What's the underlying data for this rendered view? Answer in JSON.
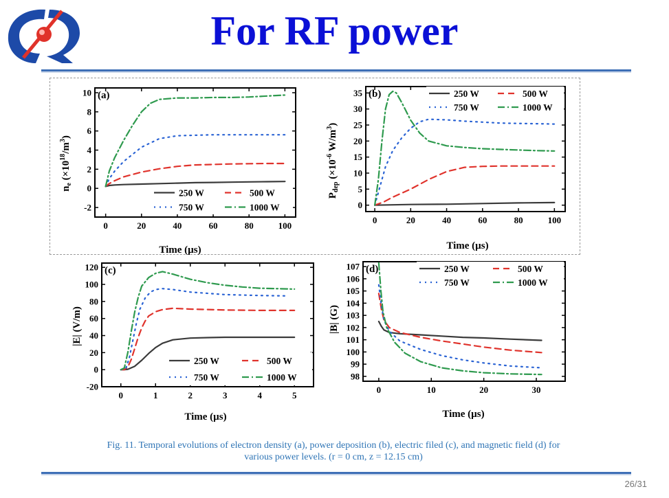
{
  "slide": {
    "title": "For RF power",
    "caption_line1": "Fig. 11. Temporal evolutions of electron density (a), power deposition (b), electric filed (c), and magnetic field (d) for",
    "caption_line2": "various power levels. (r = 0 cm, z = 12.15 cm)",
    "page_number": "26/31"
  },
  "colors": {
    "title": "#0b10d6",
    "rule": "#3e6fb6",
    "caption": "#2e74b5",
    "logo_blue": "#1d4aa8",
    "logo_red": "#e0322a"
  },
  "legend": {
    "s250": "250 W",
    "s500": "500 W",
    "s750": "750 W",
    "s1000": "1000 W"
  },
  "chart_data": [
    {
      "id": "a",
      "panel_label": "(a)",
      "type": "line",
      "xlabel": "Time  (µs)",
      "ylabel": "nₑ  (×10¹⁸/m³)",
      "xlim": [
        -6,
        106
      ],
      "ylim": [
        -3,
        10.5
      ],
      "xticks": [
        0,
        20,
        40,
        60,
        80,
        100
      ],
      "yticks": [
        -2,
        0,
        2,
        4,
        6,
        8,
        10
      ],
      "legend_position": "bottom-right",
      "series": [
        {
          "name": "250 W",
          "color": "#3a3a3a",
          "dash": "",
          "points": [
            [
              0,
              0.2
            ],
            [
              2,
              0.3
            ],
            [
              5,
              0.35
            ],
            [
              10,
              0.4
            ],
            [
              20,
              0.45
            ],
            [
              30,
              0.5
            ],
            [
              40,
              0.55
            ],
            [
              50,
              0.6
            ],
            [
              60,
              0.62
            ],
            [
              70,
              0.65
            ],
            [
              80,
              0.68
            ],
            [
              90,
              0.7
            ],
            [
              100,
              0.72
            ]
          ]
        },
        {
          "name": "500 W",
          "color": "#e0332c",
          "dash": "9,6",
          "points": [
            [
              0,
              0.2
            ],
            [
              2,
              0.5
            ],
            [
              5,
              0.8
            ],
            [
              10,
              1.2
            ],
            [
              20,
              1.7
            ],
            [
              30,
              2.05
            ],
            [
              40,
              2.3
            ],
            [
              50,
              2.45
            ],
            [
              60,
              2.5
            ],
            [
              70,
              2.55
            ],
            [
              80,
              2.58
            ],
            [
              90,
              2.6
            ],
            [
              100,
              2.6
            ]
          ]
        },
        {
          "name": "750 W",
          "color": "#2a63d4",
          "dash": "2,6",
          "points": [
            [
              0,
              0.2
            ],
            [
              2,
              1.0
            ],
            [
              5,
              1.8
            ],
            [
              10,
              2.8
            ],
            [
              20,
              4.3
            ],
            [
              30,
              5.2
            ],
            [
              40,
              5.5
            ],
            [
              50,
              5.55
            ],
            [
              60,
              5.6
            ],
            [
              70,
              5.6
            ],
            [
              80,
              5.6
            ],
            [
              90,
              5.6
            ],
            [
              100,
              5.6
            ]
          ]
        },
        {
          "name": "1000 W",
          "color": "#2e9a4e",
          "dash": "10,4,2,4",
          "points": [
            [
              0,
              0.2
            ],
            [
              2,
              1.8
            ],
            [
              5,
              3.2
            ],
            [
              10,
              5.0
            ],
            [
              15,
              6.6
            ],
            [
              20,
              8.0
            ],
            [
              25,
              8.9
            ],
            [
              30,
              9.3
            ],
            [
              40,
              9.45
            ],
            [
              50,
              9.45
            ],
            [
              60,
              9.5
            ],
            [
              70,
              9.5
            ],
            [
              80,
              9.55
            ],
            [
              90,
              9.65
            ],
            [
              100,
              9.75
            ]
          ]
        }
      ]
    },
    {
      "id": "b",
      "panel_label": "(b)",
      "type": "line",
      "xlabel": "Time  (µs)",
      "ylabel": "P_dep  (×10⁻⁶ W/m³)",
      "xlim": [
        -5,
        106
      ],
      "ylim": [
        -2,
        37
      ],
      "xticks": [
        0,
        20,
        40,
        60,
        80,
        100
      ],
      "yticks": [
        0,
        5,
        10,
        15,
        20,
        25,
        30,
        35
      ],
      "legend_position": "top-right",
      "series": [
        {
          "name": "250 W",
          "color": "#3a3a3a",
          "dash": "",
          "points": [
            [
              0,
              0
            ],
            [
              10,
              0.1
            ],
            [
              20,
              0.2
            ],
            [
              40,
              0.3
            ],
            [
              60,
              0.5
            ],
            [
              80,
              0.7
            ],
            [
              100,
              0.8
            ]
          ]
        },
        {
          "name": "500 W",
          "color": "#e0332c",
          "dash": "9,6",
          "points": [
            [
              0,
              0
            ],
            [
              5,
              1
            ],
            [
              10,
              2.5
            ],
            [
              20,
              5
            ],
            [
              30,
              8
            ],
            [
              40,
              10.5
            ],
            [
              50,
              11.8
            ],
            [
              60,
              12.1
            ],
            [
              70,
              12.2
            ],
            [
              80,
              12.2
            ],
            [
              90,
              12.2
            ],
            [
              100,
              12.2
            ]
          ]
        },
        {
          "name": "750 W",
          "color": "#2a63d4",
          "dash": "2,6",
          "points": [
            [
              0,
              0
            ],
            [
              3,
              6
            ],
            [
              6,
              12
            ],
            [
              10,
              17
            ],
            [
              15,
              21
            ],
            [
              20,
              24
            ],
            [
              25,
              26
            ],
            [
              30,
              26.8
            ],
            [
              40,
              26.6
            ],
            [
              50,
              26.2
            ],
            [
              60,
              25.9
            ],
            [
              70,
              25.6
            ],
            [
              80,
              25.5
            ],
            [
              90,
              25.4
            ],
            [
              100,
              25.3
            ]
          ]
        },
        {
          "name": "1000 W",
          "color": "#2e9a4e",
          "dash": "10,4,2,4",
          "points": [
            [
              0,
              0
            ],
            [
              2,
              8
            ],
            [
              4,
              20
            ],
            [
              6,
              30
            ],
            [
              8,
              34.5
            ],
            [
              10,
              35.5
            ],
            [
              12,
              35
            ],
            [
              15,
              32
            ],
            [
              20,
              26.5
            ],
            [
              25,
              22.5
            ],
            [
              30,
              20
            ],
            [
              40,
              18.5
            ],
            [
              50,
              18
            ],
            [
              60,
              17.6
            ],
            [
              70,
              17.4
            ],
            [
              80,
              17.2
            ],
            [
              90,
              17
            ],
            [
              100,
              16.9
            ]
          ]
        }
      ]
    },
    {
      "id": "c",
      "panel_label": "(c)",
      "type": "line",
      "xlabel": "Time  (µs)",
      "ylabel": "|E|  (V/m)",
      "xlim": [
        -0.55,
        5.55
      ],
      "ylim": [
        -20,
        125
      ],
      "xticks": [
        0,
        1,
        2,
        3,
        4,
        5
      ],
      "yticks": [
        -20,
        0,
        20,
        40,
        60,
        80,
        100,
        120
      ],
      "legend_position": "bottom-right",
      "series": [
        {
          "name": "250 W",
          "color": "#3a3a3a",
          "dash": "",
          "points": [
            [
              0,
              0
            ],
            [
              0.1,
              0
            ],
            [
              0.2,
              0.5
            ],
            [
              0.4,
              4
            ],
            [
              0.6,
              11
            ],
            [
              0.8,
              19
            ],
            [
              1.0,
              26
            ],
            [
              1.2,
              31
            ],
            [
              1.5,
              35
            ],
            [
              2.0,
              37
            ],
            [
              2.5,
              37.6
            ],
            [
              3,
              38
            ],
            [
              3.5,
              38
            ],
            [
              4,
              38
            ],
            [
              4.5,
              38
            ],
            [
              5,
              38
            ]
          ]
        },
        {
          "name": "500 W",
          "color": "#e0332c",
          "dash": "9,6",
          "points": [
            [
              0,
              0
            ],
            [
              0.1,
              0
            ],
            [
              0.2,
              3
            ],
            [
              0.3,
              12
            ],
            [
              0.4,
              25
            ],
            [
              0.5,
              38
            ],
            [
              0.6,
              49
            ],
            [
              0.7,
              57
            ],
            [
              0.8,
              63
            ],
            [
              1.0,
              68
            ],
            [
              1.2,
              70.5
            ],
            [
              1.5,
              72
            ],
            [
              2.0,
              71
            ],
            [
              3,
              70
            ],
            [
              4,
              69.5
            ],
            [
              5,
              69.5
            ]
          ]
        },
        {
          "name": "750 W",
          "color": "#2a63d4",
          "dash": "2,6",
          "points": [
            [
              0,
              0
            ],
            [
              0.15,
              2
            ],
            [
              0.25,
              15
            ],
            [
              0.35,
              35
            ],
            [
              0.45,
              55
            ],
            [
              0.55,
              71
            ],
            [
              0.7,
              84
            ],
            [
              0.85,
              91
            ],
            [
              1.0,
              94
            ],
            [
              1.2,
              95
            ],
            [
              1.5,
              94
            ],
            [
              2.0,
              91
            ],
            [
              3,
              88
            ],
            [
              4,
              87
            ],
            [
              4.8,
              86.5
            ]
          ]
        },
        {
          "name": "1000 W",
          "color": "#2e9a4e",
          "dash": "10,4,2,4",
          "points": [
            [
              0,
              0
            ],
            [
              0.1,
              2
            ],
            [
              0.2,
              20
            ],
            [
              0.3,
              45
            ],
            [
              0.4,
              68
            ],
            [
              0.5,
              85
            ],
            [
              0.6,
              98
            ],
            [
              0.8,
              108
            ],
            [
              1.0,
              113
            ],
            [
              1.2,
              115
            ],
            [
              1.5,
              112
            ],
            [
              2.0,
              106
            ],
            [
              2.5,
              102
            ],
            [
              3,
              99
            ],
            [
              3.5,
              97
            ],
            [
              4,
              95.5
            ],
            [
              5,
              94.5
            ]
          ]
        }
      ]
    },
    {
      "id": "d",
      "panel_label": "(d)",
      "type": "line",
      "xlabel": "Time  (µs)",
      "ylabel": "|B|  (G)",
      "xlim": [
        -3,
        35.5
      ],
      "ylim": [
        97.6,
        107.4
      ],
      "xticks": [
        0,
        10,
        20,
        30
      ],
      "yticks": [
        98,
        99,
        100,
        101,
        102,
        103,
        104,
        105,
        106,
        107
      ],
      "legend_position": "top-right",
      "series": [
        {
          "name": "250 W",
          "color": "#3a3a3a",
          "dash": "",
          "points": [
            [
              0,
              102.5
            ],
            [
              0.5,
              102.1
            ],
            [
              1,
              101.8
            ],
            [
              2,
              101.6
            ],
            [
              4,
              101.5
            ],
            [
              8,
              101.4
            ],
            [
              12,
              101.3
            ],
            [
              16,
              101.2
            ],
            [
              20,
              101.15
            ],
            [
              25,
              101.05
            ],
            [
              31,
              100.95
            ]
          ]
        },
        {
          "name": "500 W",
          "color": "#e0332c",
          "dash": "9,6",
          "points": [
            [
              0,
              104.8
            ],
            [
              0.5,
              103.5
            ],
            [
              1,
              102.6
            ],
            [
              2,
              102.0
            ],
            [
              4,
              101.6
            ],
            [
              8,
              101.2
            ],
            [
              12,
              100.9
            ],
            [
              16,
              100.65
            ],
            [
              20,
              100.4
            ],
            [
              25,
              100.15
            ],
            [
              31,
              99.95
            ]
          ]
        },
        {
          "name": "750 W",
          "color": "#2a63d4",
          "dash": "2,6",
          "points": [
            [
              0,
              105.5
            ],
            [
              0.5,
              103.8
            ],
            [
              1,
              102.6
            ],
            [
              2,
              101.7
            ],
            [
              4,
              100.9
            ],
            [
              8,
              100.2
            ],
            [
              12,
              99.7
            ],
            [
              16,
              99.35
            ],
            [
              20,
              99.1
            ],
            [
              25,
              98.85
            ],
            [
              31,
              98.7
            ]
          ]
        },
        {
          "name": "1000 W",
          "color": "#2e9a4e",
          "dash": "10,4,2,4",
          "points": [
            [
              0,
              107.3
            ],
            [
              0.4,
              105.0
            ],
            [
              0.8,
              103.3
            ],
            [
              1.5,
              102.0
            ],
            [
              3,
              100.8
            ],
            [
              5,
              99.9
            ],
            [
              8,
              99.2
            ],
            [
              12,
              98.7
            ],
            [
              16,
              98.45
            ],
            [
              20,
              98.3
            ],
            [
              25,
              98.2
            ],
            [
              31,
              98.15
            ]
          ]
        }
      ]
    }
  ]
}
